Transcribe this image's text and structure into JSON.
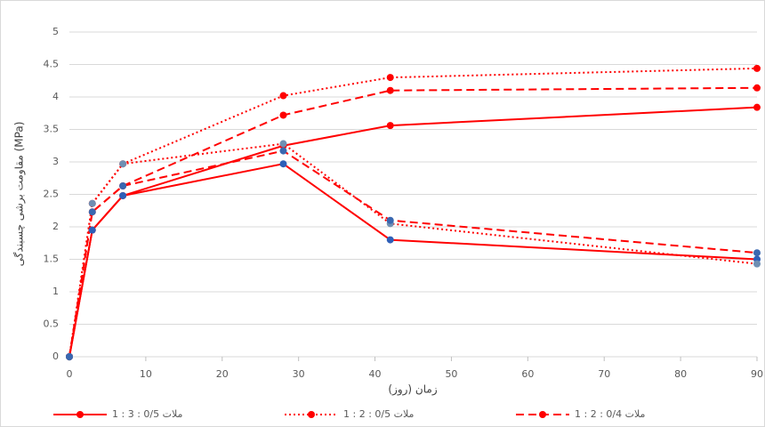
{
  "chart_data": {
    "type": "line",
    "y_label": "مقاومت برشی چسبندگی (MPa)",
    "x_label": "زمان (روز)",
    "x": [
      0,
      3,
      7,
      28,
      42,
      90
    ],
    "xlim": [
      0,
      90
    ],
    "xticks": [
      0,
      10,
      20,
      30,
      40,
      50,
      60,
      70,
      80,
      90
    ],
    "ylim": [
      0,
      5
    ],
    "yticks": [
      0,
      0.5,
      1,
      1.5,
      2,
      2.5,
      3,
      3.5,
      4,
      4.5,
      5
    ],
    "grid": true,
    "legend": "bottom",
    "series": [
      {
        "name": "ملات 0/5 : 3 : 1",
        "color": "#ff0000",
        "marker_color": "#ff0000",
        "dash": "solid",
        "values": [
          0,
          1.95,
          2.48,
          3.25,
          3.56,
          3.84
        ]
      },
      {
        "name": "ملات 0/5 : 2 : 1",
        "color": "#ff0000",
        "marker_color": "#ff0000",
        "dash": "dotted",
        "values": [
          0,
          2.36,
          2.97,
          4.02,
          4.3,
          4.44
        ]
      },
      {
        "name": "ملات 0/4 : 2 : 1",
        "color": "#ff0000",
        "marker_color": "#ff0000",
        "dash": "dashed",
        "values": [
          0,
          2.23,
          2.63,
          3.72,
          4.1,
          4.14
        ]
      },
      {
        "color": "#ff0000",
        "marker_color": "#2e5fb8",
        "dash": "solid",
        "values": [
          0,
          1.95,
          2.48,
          2.97,
          1.8,
          1.5
        ]
      },
      {
        "color": "#ff0000",
        "marker_color": "#6f8fb3",
        "dash": "dotted",
        "values": [
          0,
          2.36,
          2.97,
          3.28,
          2.05,
          1.43
        ]
      },
      {
        "color": "#ff0000",
        "marker_color": "#3a68b0",
        "dash": "dashed",
        "values": [
          0,
          2.23,
          2.63,
          3.17,
          2.1,
          1.6
        ]
      }
    ]
  }
}
